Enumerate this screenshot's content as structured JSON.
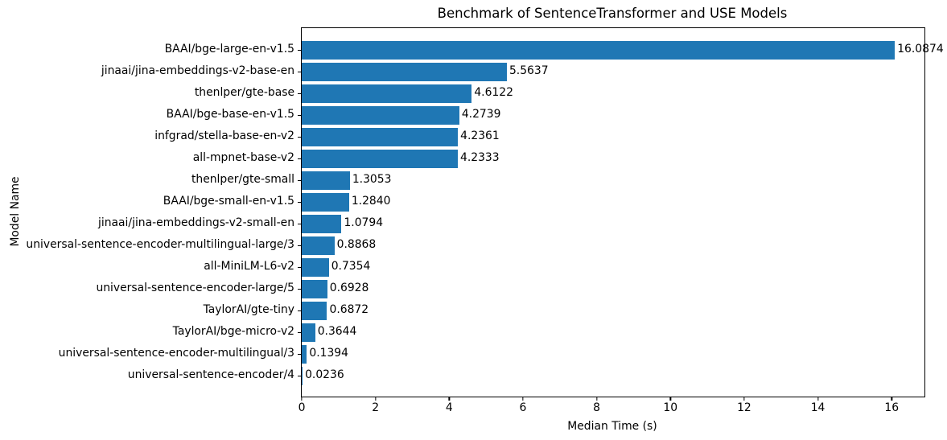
{
  "chart_data": {
    "type": "bar",
    "orientation": "horizontal",
    "title": "Benchmark of SentenceTransformer and USE Models",
    "xlabel": "Median Time (s)",
    "ylabel": "Model Name",
    "xlim": [
      0,
      16.89
    ],
    "xticks": [
      0,
      2,
      4,
      6,
      8,
      10,
      12,
      14,
      16
    ],
    "bar_color": "#1f77b4",
    "value_label_decimals": 4,
    "grid": false,
    "legend": false,
    "categories": [
      "BAAI/bge-large-en-v1.5",
      "jinaai/jina-embeddings-v2-base-en",
      "thenlper/gte-base",
      "BAAI/bge-base-en-v1.5",
      "infgrad/stella-base-en-v2",
      "all-mpnet-base-v2",
      "thenlper/gte-small",
      "BAAI/bge-small-en-v1.5",
      "jinaai/jina-embeddings-v2-small-en",
      "universal-sentence-encoder-multilingual-large/3",
      "all-MiniLM-L6-v2",
      "universal-sentence-encoder-large/5",
      "TaylorAI/gte-tiny",
      "TaylorAI/bge-micro-v2",
      "universal-sentence-encoder-multilingual/3",
      "universal-sentence-encoder/4"
    ],
    "values": [
      16.0874,
      5.5637,
      4.6122,
      4.2739,
      4.2361,
      4.2333,
      1.3053,
      1.284,
      1.0794,
      0.8868,
      0.7354,
      0.6928,
      0.6872,
      0.3644,
      0.1394,
      0.0236
    ]
  }
}
